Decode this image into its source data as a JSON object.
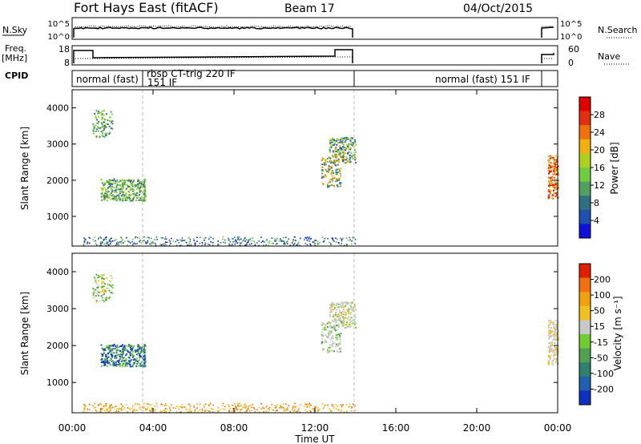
{
  "header": {
    "station": "Fort Hays East (fitACF)",
    "beam": "Beam 17",
    "date": "04/Oct/2015"
  },
  "left_labels": {
    "nsky": "N.Sky",
    "freq": "Freq.",
    "freq_unit": "[MHz]",
    "cpid": "CPID"
  },
  "right_labels": {
    "nsearch": "N.Search",
    "nave": "Nave"
  },
  "noise_panel": {
    "left_ticks": [
      "10^5",
      "10^0"
    ],
    "right_ticks": [
      "10^5",
      "10^0"
    ]
  },
  "freq_panel": {
    "left_ticks": [
      "18",
      "8"
    ],
    "right_ticks": [
      "60",
      "0"
    ]
  },
  "cpid_panel": {
    "segments": [
      {
        "label": "normal (fast)",
        "start_h": 0,
        "end_h": 3.5
      },
      {
        "label": "rbsp CT-trig 220 IF",
        "label2": "151 IF",
        "start_h": 3.5,
        "end_h": 14.0
      },
      {
        "label": "normal (fast) 151 IF",
        "start_h": 14.0,
        "end_h": 23.9
      }
    ]
  },
  "power_panel": {
    "ylabel": "Slant Range [km]",
    "yticks": [
      "1000",
      "2000",
      "3000",
      "4000"
    ],
    "colorbar_label": "Power [dB]",
    "colorbar_ticks": [
      "4",
      "8",
      "12",
      "16",
      "20",
      "24",
      "28"
    ],
    "colors": [
      "#1010dd",
      "#2050b0",
      "#307080",
      "#50a060",
      "#70cc40",
      "#b0d020",
      "#f0b010",
      "#f07010",
      "#e03010",
      "#e00000"
    ]
  },
  "velocity_panel": {
    "ylabel": "Slant Range [km]",
    "yticks": [
      "1000",
      "2000",
      "3000",
      "4000"
    ],
    "colorbar_label": "Velocity [m s⁻¹]",
    "colorbar_ticks": [
      "200",
      "100",
      "50",
      "15",
      "-15",
      "-50",
      "-100",
      "-200"
    ],
    "colors": [
      "#1030c0",
      "#2060b0",
      "#308070",
      "#50a050",
      "#70cc30",
      "#c8c8c8",
      "#f0c020",
      "#f0a010",
      "#f07010",
      "#e02000"
    ]
  },
  "x_axis": {
    "ticks": [
      "00:00",
      "04:00",
      "08:00",
      "12:00",
      "16:00",
      "20:00",
      "00:00"
    ],
    "label": "Time UT"
  },
  "chart_data": {
    "type": "heatmap",
    "x_range_hours": [
      0,
      24
    ],
    "y_range_km": [
      180,
      4500
    ],
    "scatter_regions": [
      {
        "name": "early-upper",
        "t": [
          1.0,
          2.0
        ],
        "range_km": [
          3200,
          3950
        ]
      },
      {
        "name": "early-lower",
        "t": [
          1.4,
          3.6
        ],
        "range_km": [
          1450,
          2050
        ]
      },
      {
        "name": "midday-upper",
        "t": [
          12.7,
          14.0
        ],
        "range_km": [
          2500,
          3200
        ]
      },
      {
        "name": "midday-lower",
        "t": [
          12.3,
          13.3
        ],
        "range_km": [
          1800,
          2700
        ]
      },
      {
        "name": "late",
        "t": [
          23.5,
          24.0
        ],
        "range_km": [
          1500,
          2700
        ]
      }
    ],
    "near_range_band_km": [
      200,
      450
    ],
    "power_scale_db": [
      0,
      30
    ],
    "velocity_scale_ms": [
      -250,
      250
    ]
  }
}
